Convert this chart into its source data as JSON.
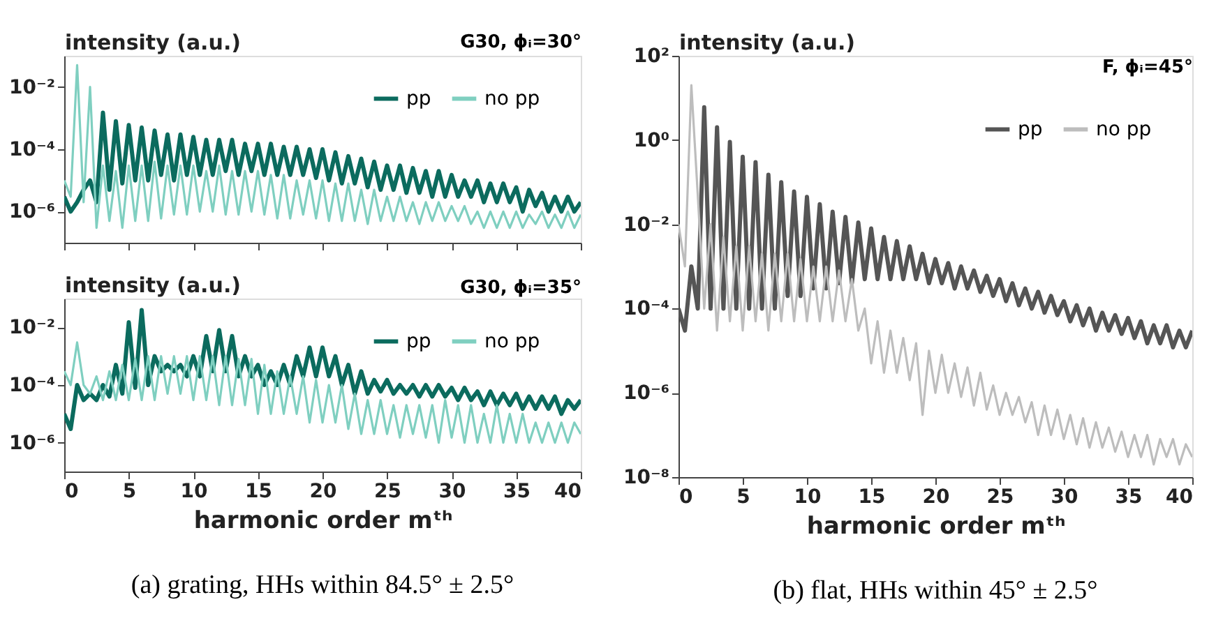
{
  "chart_data": [
    {
      "type": "line",
      "title": "G30, ϕᵢ=30°",
      "ylabel": "intensity (a.u.)",
      "log": "y",
      "legend": "top right",
      "tick_labels": "y",
      "xlim": [
        0,
        40
      ],
      "xticks": [
        0,
        5,
        10,
        15,
        20,
        25,
        30,
        35,
        40
      ],
      "ylim": [
        1e-07,
        0.1
      ],
      "yticks": [
        {
          "value": 1e-06,
          "label": "10⁻⁶"
        },
        {
          "value": 0.0001,
          "label": "10⁻⁴"
        },
        {
          "value": 0.01,
          "label": "10⁻²"
        }
      ],
      "x": [
        0,
        0.5,
        1,
        1.5,
        2,
        2.5,
        3,
        3.5,
        4,
        4.5,
        5,
        5.5,
        6,
        6.5,
        7,
        7.5,
        8,
        8.5,
        9,
        9.5,
        10,
        10.5,
        11,
        11.5,
        12,
        12.5,
        13,
        13.5,
        14,
        14.5,
        15,
        15.5,
        16,
        16.5,
        17,
        17.5,
        18,
        18.5,
        19,
        19.5,
        20,
        20.5,
        21,
        21.5,
        22,
        22.5,
        23,
        23.5,
        24,
        24.5,
        25,
        25.5,
        26,
        26.5,
        27,
        27.5,
        28,
        28.5,
        29,
        29.5,
        30,
        30.5,
        31,
        31.5,
        32,
        32.5,
        33,
        33.5,
        34,
        34.5,
        35,
        35.5,
        36,
        36.5,
        37,
        37.5,
        38,
        38.5,
        39,
        39.5,
        40
      ],
      "series": [
        {
          "name": "pp",
          "color": "#0b6b5e",
          "values": [
            3e-06,
            1e-06,
            2e-06,
            5e-06,
            1e-05,
            2e-06,
            0.0015,
            5e-06,
            0.0008,
            8e-06,
            0.0006,
            1e-05,
            0.0005,
            1e-05,
            0.0004,
            1.5e-05,
            0.0003,
            1e-05,
            0.0003,
            1.5e-05,
            0.00025,
            1.5e-05,
            0.0002,
            1.5e-05,
            0.0002,
            2e-05,
            0.0002,
            1.5e-05,
            0.00015,
            2e-05,
            0.00015,
            1.5e-05,
            0.00015,
            1.5e-05,
            0.00012,
            1.5e-05,
            0.00012,
            1.5e-05,
            0.0001,
            1.2e-05,
            0.0001,
            1e-05,
            8e-05,
            8e-06,
            6e-05,
            8e-06,
            5e-05,
            6e-06,
            4e-05,
            5e-06,
            3e-05,
            5e-06,
            3e-05,
            4e-06,
            2.5e-05,
            4e-06,
            2e-05,
            3e-06,
            2e-05,
            3e-06,
            1.5e-05,
            3e-06,
            1e-05,
            3e-06,
            1e-05,
            2e-06,
            8e-06,
            2e-06,
            8e-06,
            2e-06,
            6e-06,
            1e-06,
            5e-06,
            1.5e-06,
            4e-06,
            1e-06,
            3e-06,
            1e-06,
            3e-06,
            1e-06,
            2e-06
          ]
        },
        {
          "name": "no pp",
          "color": "#7fcfc0",
          "values": [
            1e-05,
            3e-06,
            0.05,
            2e-06,
            0.01,
            3e-07,
            3e-05,
            5e-07,
            2e-05,
            3e-07,
            3e-05,
            5e-07,
            3e-05,
            5e-07,
            4e-05,
            6e-07,
            3e-05,
            8e-07,
            3e-05,
            8e-07,
            3e-05,
            1e-06,
            2e-05,
            1e-06,
            3e-05,
            8e-07,
            2e-05,
            8e-07,
            2e-05,
            1e-06,
            2e-05,
            8e-07,
            1.5e-05,
            6e-07,
            1.5e-05,
            6e-07,
            1e-05,
            8e-07,
            1e-05,
            6e-07,
            1e-05,
            5e-07,
            8e-06,
            5e-07,
            8e-06,
            5e-07,
            5e-06,
            4e-07,
            5e-06,
            5e-07,
            3e-06,
            5e-07,
            3e-06,
            5e-07,
            2e-06,
            4e-07,
            2e-06,
            5e-07,
            2e-06,
            5e-07,
            1.5e-06,
            5e-07,
            1.5e-06,
            4e-07,
            1e-06,
            3e-07,
            1e-06,
            3e-07,
            1e-06,
            3e-07,
            1e-06,
            3e-07,
            8e-07,
            4e-07,
            1e-06,
            3e-07,
            8e-07,
            3e-07,
            1e-06,
            3e-07,
            8e-07
          ]
        }
      ]
    },
    {
      "type": "line",
      "title": "G30, ϕᵢ=35°",
      "ylabel": "intensity (a.u.)",
      "xlabel": "harmonic order mᵗʰ",
      "log": "y",
      "legend": "top right",
      "xlim": [
        0,
        40
      ],
      "xticks": [
        0,
        5,
        10,
        15,
        20,
        25,
        30,
        35,
        40
      ],
      "ylim": [
        1e-07,
        0.1
      ],
      "yticks": [
        {
          "value": 1e-06,
          "label": "10⁻⁶"
        },
        {
          "value": 0.0001,
          "label": "10⁻⁴"
        },
        {
          "value": 0.01,
          "label": "10⁻²"
        }
      ],
      "annotations": [
        "(a) grating, HHs within 84.5° ± 2.5°"
      ],
      "x": [
        0,
        0.5,
        1,
        1.5,
        2,
        2.5,
        3,
        3.5,
        4,
        4.5,
        5,
        5.5,
        6,
        6.5,
        7,
        7.5,
        8,
        8.5,
        9,
        9.5,
        10,
        10.5,
        11,
        11.5,
        12,
        12.5,
        13,
        13.5,
        14,
        14.5,
        15,
        15.5,
        16,
        16.5,
        17,
        17.5,
        18,
        18.5,
        19,
        19.5,
        20,
        20.5,
        21,
        21.5,
        22,
        22.5,
        23,
        23.5,
        24,
        24.5,
        25,
        25.5,
        26,
        26.5,
        27,
        27.5,
        28,
        28.5,
        29,
        29.5,
        30,
        30.5,
        31,
        31.5,
        32,
        32.5,
        33,
        33.5,
        34,
        34.5,
        35,
        35.5,
        36,
        36.5,
        37,
        37.5,
        38,
        38.5,
        39,
        39.5,
        40
      ],
      "series": [
        {
          "name": "pp",
          "color": "#0b6b5e",
          "values": [
            1e-05,
            3e-06,
            0.0001,
            3e-05,
            5e-05,
            3e-05,
            0.0001,
            4e-05,
            0.0005,
            5e-05,
            0.015,
            8e-05,
            0.04,
            0.0001,
            0.001,
            0.0003,
            0.0005,
            0.0003,
            0.0005,
            0.0002,
            0.001,
            0.0002,
            0.005,
            0.0003,
            0.008,
            0.0003,
            0.005,
            0.0002,
            0.001,
            0.0002,
            0.0005,
            0.0001,
            0.0003,
            0.0001,
            0.0005,
            0.0001,
            0.001,
            0.0002,
            0.002,
            0.0002,
            0.002,
            0.0002,
            0.001,
            0.0001,
            0.0005,
            5e-05,
            0.0003,
            5e-05,
            0.00015,
            6e-05,
            0.00015,
            5e-05,
            0.0001,
            5e-05,
            0.0001,
            4e-05,
            0.0001,
            4e-05,
            0.0001,
            4e-05,
            8e-05,
            3e-05,
            8e-05,
            3e-05,
            6e-05,
            2e-05,
            6e-05,
            2e-05,
            5e-05,
            2e-05,
            5e-05,
            1.5e-05,
            4e-05,
            1.5e-05,
            4e-05,
            1.5e-05,
            4e-05,
            1e-05,
            3e-05,
            1.5e-05,
            3e-05
          ]
        },
        {
          "name": "no pp",
          "color": "#7fcfc0",
          "values": [
            0.0003,
            0.0001,
            0.003,
            0.0001,
            5e-05,
            0.0002,
            3e-05,
            0.0003,
            3e-05,
            0.0005,
            3e-05,
            0.0008,
            3e-05,
            0.001,
            3e-05,
            0.001,
            5e-05,
            0.001,
            5e-05,
            0.001,
            3e-05,
            0.001,
            3e-05,
            0.001,
            2e-05,
            0.001,
            2e-05,
            0.0008,
            2e-05,
            0.0008,
            1e-05,
            0.0005,
            1e-05,
            0.0003,
            1e-05,
            0.0002,
            1e-05,
            0.0002,
            5e-06,
            0.00015,
            5e-06,
            0.0001,
            5e-06,
            0.0001,
            3e-06,
            5e-05,
            2e-06,
            3e-05,
            2e-06,
            3e-05,
            2e-06,
            2e-05,
            1.5e-06,
            2e-05,
            2e-06,
            2e-05,
            1.5e-06,
            2e-05,
            1e-06,
            3e-05,
            1.5e-06,
            2e-05,
            1e-06,
            2e-05,
            1e-06,
            1e-05,
            1e-06,
            2e-05,
            1e-06,
            1e-05,
            1e-06,
            1e-05,
            1e-06,
            5e-06,
            1e-06,
            5e-06,
            1e-06,
            5e-06,
            1e-06,
            5e-06,
            2e-06
          ]
        }
      ]
    },
    {
      "type": "line",
      "title": "F, ϕᵢ=45°",
      "ylabel": "intensity (a.u.)",
      "xlabel": "harmonic order mᵗʰ",
      "log": "y",
      "legend": "top right",
      "xlim": [
        0,
        40
      ],
      "xticks": [
        0,
        5,
        10,
        15,
        20,
        25,
        30,
        35,
        40
      ],
      "ylim": [
        1e-08,
        100.0
      ],
      "yticks": [
        {
          "value": 1e-08,
          "label": "10⁻⁸"
        },
        {
          "value": 1e-06,
          "label": "10⁻⁶"
        },
        {
          "value": 0.0001,
          "label": "10⁻⁴"
        },
        {
          "value": 0.01,
          "label": "10⁻²"
        },
        {
          "value": 1,
          "label": "10⁰"
        },
        {
          "value": 100,
          "label": "10²"
        }
      ],
      "annotations": [
        "(b) flat, HHs within 45° ± 2.5°"
      ],
      "x": [
        0,
        0.5,
        1,
        1.5,
        2,
        2.5,
        3,
        3.5,
        4,
        4.5,
        5,
        5.5,
        6,
        6.5,
        7,
        7.5,
        8,
        8.5,
        9,
        9.5,
        10,
        10.5,
        11,
        11.5,
        12,
        12.5,
        13,
        13.5,
        14,
        14.5,
        15,
        15.5,
        16,
        16.5,
        17,
        17.5,
        18,
        18.5,
        19,
        19.5,
        20,
        20.5,
        21,
        21.5,
        22,
        22.5,
        23,
        23.5,
        24,
        24.5,
        25,
        25.5,
        26,
        26.5,
        27,
        27.5,
        28,
        28.5,
        29,
        29.5,
        30,
        30.5,
        31,
        31.5,
        32,
        32.5,
        33,
        33.5,
        34,
        34.5,
        35,
        35.5,
        36,
        36.5,
        37,
        37.5,
        38,
        38.5,
        39,
        39.5,
        40
      ],
      "series": [
        {
          "name": "pp",
          "color": "#555555",
          "values": [
            0.0001,
            3e-05,
            0.001,
            0.0001,
            6,
            0.0001,
            2,
            0.0001,
            0.9,
            0.0001,
            0.4,
            0.0001,
            0.3,
            0.0001,
            0.15,
            0.0001,
            0.1,
            0.0002,
            0.06,
            0.0002,
            0.045,
            0.0003,
            0.03,
            0.0003,
            0.02,
            0.0004,
            0.015,
            0.0004,
            0.011,
            0.0005,
            0.008,
            0.0005,
            0.005,
            0.0005,
            0.004,
            0.0005,
            0.003,
            0.0005,
            0.002,
            0.0004,
            0.0015,
            0.0004,
            0.0012,
            0.0003,
            0.001,
            0.0003,
            0.0008,
            0.00025,
            0.0006,
            0.0002,
            0.0005,
            0.00015,
            0.0004,
            0.00012,
            0.0003,
            0.0001,
            0.00025,
            8e-05,
            0.0002,
            7e-05,
            0.00015,
            5e-05,
            0.00012,
            4e-05,
            0.0001,
            3e-05,
            8e-05,
            3e-05,
            7e-05,
            2.5e-05,
            6e-05,
            2e-05,
            5e-05,
            1.5e-05,
            4e-05,
            1.5e-05,
            4e-05,
            1.2e-05,
            3e-05,
            1.2e-05,
            3e-05
          ]
        },
        {
          "name": "no pp",
          "color": "#bdbdbd",
          "values": [
            0.01,
            0.001,
            20,
            0.05,
            0.0001,
            0.01,
            3e-05,
            0.005,
            5e-05,
            0.003,
            3e-05,
            0.003,
            5e-05,
            0.002,
            3e-05,
            0.002,
            5e-05,
            0.002,
            5e-05,
            0.0015,
            5e-05,
            0.001,
            5e-05,
            0.001,
            5e-05,
            0.0008,
            5e-05,
            0.0005,
            3e-05,
            0.0001,
            5e-06,
            5e-05,
            3e-06,
            3e-05,
            3e-06,
            2e-05,
            2e-06,
            1.5e-05,
            3e-07,
            1e-05,
            1e-06,
            8e-06,
            1e-06,
            5e-06,
            8e-07,
            4e-06,
            5e-07,
            3e-06,
            4e-07,
            1.5e-06,
            3e-07,
            1e-06,
            3e-07,
            8e-07,
            2e-07,
            6e-07,
            1e-07,
            5e-07,
            1e-07,
            4e-07,
            8e-08,
            3e-07,
            6e-08,
            2.5e-07,
            5e-08,
            2e-07,
            5e-08,
            1.5e-07,
            4e-08,
            1.2e-07,
            3e-08,
            1e-07,
            3e-08,
            1e-07,
            2e-08,
            8e-08,
            3e-08,
            8e-08,
            2e-08,
            6e-08,
            3e-08
          ]
        }
      ]
    }
  ]
}
